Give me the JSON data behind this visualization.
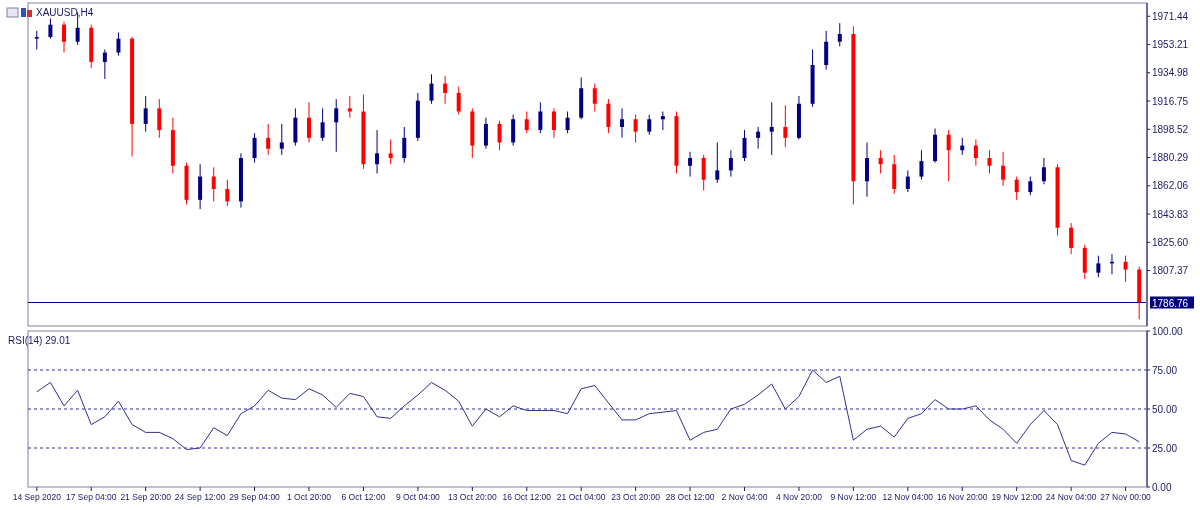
{
  "chart_data": [
    {
      "type": "candlestick",
      "title": "XAUUSD,H4",
      "tick_labels": "y",
      "ohlc": [
        [
          1957,
          1962,
          1950,
          1958
        ],
        [
          1958,
          1970,
          1957,
          1966
        ],
        [
          1966,
          1968,
          1948,
          1955
        ],
        [
          1955,
          1974,
          1953,
          1964
        ],
        [
          1964,
          1966,
          1938,
          1942
        ],
        [
          1942,
          1950,
          1931,
          1948
        ],
        [
          1948,
          1961,
          1946,
          1957
        ],
        [
          1957,
          1958,
          1881,
          1902
        ],
        [
          1902,
          1920,
          1897,
          1912
        ],
        [
          1912,
          1918,
          1893,
          1898
        ],
        [
          1898,
          1906,
          1870,
          1875
        ],
        [
          1875,
          1877,
          1850,
          1853
        ],
        [
          1853,
          1876,
          1847,
          1868
        ],
        [
          1868,
          1874,
          1852,
          1860
        ],
        [
          1860,
          1866,
          1849,
          1852
        ],
        [
          1852,
          1883,
          1848,
          1880
        ],
        [
          1880,
          1896,
          1877,
          1893
        ],
        [
          1893,
          1902,
          1882,
          1886
        ],
        [
          1886,
          1902,
          1882,
          1890
        ],
        [
          1890,
          1912,
          1888,
          1906
        ],
        [
          1906,
          1916,
          1890,
          1893
        ],
        [
          1893,
          1912,
          1891,
          1903
        ],
        [
          1903,
          1918,
          1884,
          1912
        ],
        [
          1912,
          1920,
          1906,
          1910
        ],
        [
          1910,
          1921,
          1873,
          1876
        ],
        [
          1876,
          1898,
          1870,
          1883
        ],
        [
          1883,
          1892,
          1876,
          1880
        ],
        [
          1880,
          1900,
          1877,
          1893
        ],
        [
          1893,
          1922,
          1891,
          1917
        ],
        [
          1917,
          1934,
          1915,
          1928
        ],
        [
          1928,
          1933,
          1915,
          1922
        ],
        [
          1922,
          1926,
          1908,
          1910
        ],
        [
          1910,
          1912,
          1880,
          1888
        ],
        [
          1888,
          1906,
          1886,
          1902
        ],
        [
          1902,
          1904,
          1885,
          1890
        ],
        [
          1890,
          1908,
          1888,
          1905
        ],
        [
          1905,
          1910,
          1896,
          1898
        ],
        [
          1898,
          1916,
          1896,
          1910
        ],
        [
          1910,
          1912,
          1893,
          1898
        ],
        [
          1898,
          1910,
          1896,
          1906
        ],
        [
          1906,
          1932,
          1905,
          1925
        ],
        [
          1925,
          1928,
          1910,
          1915
        ],
        [
          1915,
          1918,
          1896,
          1900
        ],
        [
          1900,
          1912,
          1893,
          1905
        ],
        [
          1905,
          1908,
          1890,
          1897
        ],
        [
          1897,
          1908,
          1895,
          1905
        ],
        [
          1905,
          1910,
          1898,
          1907
        ],
        [
          1907,
          1910,
          1870,
          1875
        ],
        [
          1875,
          1884,
          1868,
          1880
        ],
        [
          1880,
          1882,
          1859,
          1866
        ],
        [
          1866,
          1890,
          1864,
          1872
        ],
        [
          1872,
          1885,
          1868,
          1880
        ],
        [
          1880,
          1898,
          1878,
          1893
        ],
        [
          1893,
          1900,
          1886,
          1897
        ],
        [
          1897,
          1916,
          1882,
          1900
        ],
        [
          1900,
          1914,
          1887,
          1893
        ],
        [
          1893,
          1920,
          1892,
          1915
        ],
        [
          1915,
          1950,
          1913,
          1940
        ],
        [
          1940,
          1962,
          1937,
          1955
        ],
        [
          1955,
          1967,
          1952,
          1960
        ],
        [
          1960,
          1965,
          1850,
          1865
        ],
        [
          1865,
          1890,
          1855,
          1880
        ],
        [
          1880,
          1885,
          1870,
          1876
        ],
        [
          1876,
          1882,
          1857,
          1860
        ],
        [
          1860,
          1872,
          1858,
          1868
        ],
        [
          1868,
          1885,
          1866,
          1878
        ],
        [
          1878,
          1899,
          1877,
          1895
        ],
        [
          1895,
          1898,
          1865,
          1885
        ],
        [
          1885,
          1893,
          1882,
          1888
        ],
        [
          1888,
          1892,
          1875,
          1880
        ],
        [
          1880,
          1885,
          1870,
          1875
        ],
        [
          1875,
          1884,
          1862,
          1866
        ],
        [
          1866,
          1868,
          1853,
          1858
        ],
        [
          1858,
          1868,
          1856,
          1865
        ],
        [
          1865,
          1880,
          1863,
          1874
        ],
        [
          1874,
          1876,
          1830,
          1835
        ],
        [
          1835,
          1838,
          1818,
          1822
        ],
        [
          1822,
          1824,
          1802,
          1806
        ],
        [
          1806,
          1817,
          1803,
          1812
        ],
        [
          1812,
          1818,
          1805,
          1813
        ],
        [
          1813,
          1817,
          1800,
          1808
        ],
        [
          1808,
          1810,
          1776,
          1787
        ]
      ],
      "colors": [
        "#000080",
        "#000080",
        "#ff0000",
        "#000080",
        "#ff0000",
        "#000080",
        "#000080",
        "#ff0000",
        "#000080",
        "#ff0000",
        "#ff0000",
        "#ff0000",
        "#000080",
        "#ff0000",
        "#ff0000",
        "#000080",
        "#000080",
        "#ff0000",
        "#000080",
        "#000080",
        "#ff0000",
        "#000080",
        "#000080",
        "#ff0000",
        "#ff0000",
        "#000080",
        "#ff0000",
        "#000080",
        "#000080",
        "#000080",
        "#ff0000",
        "#ff0000",
        "#ff0000",
        "#000080",
        "#ff0000",
        "#000080",
        "#ff0000",
        "#000080",
        "#ff0000",
        "#000080",
        "#000080",
        "#ff0000",
        "#ff0000",
        "#000080",
        "#ff0000",
        "#000080",
        "#000080",
        "#ff0000",
        "#000080",
        "#ff0000",
        "#000080",
        "#000080",
        "#000080",
        "#000080",
        "#000080",
        "#ff0000",
        "#000080",
        "#000080",
        "#000080",
        "#000080",
        "#ff0000",
        "#000080",
        "#ff0000",
        "#ff0000",
        "#000080",
        "#000080",
        "#000080",
        "#ff0000",
        "#000080",
        "#ff0000",
        "#ff0000",
        "#ff0000",
        "#ff0000",
        "#000080",
        "#000080",
        "#ff0000",
        "#ff0000",
        "#ff0000",
        "#000080",
        "#000080",
        "#ff0000",
        "#ff0000"
      ],
      "ylim": [
        1771.6,
        1980
      ],
      "yticks": [
        {
          "value": 1807.37,
          "label": "1807.37"
        },
        {
          "value": 1825.6,
          "label": "1825.60"
        },
        {
          "value": 1843.83,
          "label": "1843.83"
        },
        {
          "value": 1862.06,
          "label": "1862.06"
        },
        {
          "value": 1880.29,
          "label": "1880.29"
        },
        {
          "value": 1898.52,
          "label": "1898.52"
        },
        {
          "value": 1916.75,
          "label": "1916.75"
        },
        {
          "value": 1934.98,
          "label": "1934.98"
        },
        {
          "value": 1953.21,
          "label": "1953.21"
        },
        {
          "value": 1971.44,
          "label": "1971.44"
        }
      ],
      "ref_lines": [
        {
          "axis": "y",
          "value": 1786.76,
          "label": "1786.76",
          "color": "#000080",
          "line_style": "solid"
        }
      ]
    },
    {
      "type": "line",
      "title": "RSI(14) 29.01",
      "categories": [
        "14 Sep 2020",
        null,
        null,
        null,
        "17 Sep 04:00",
        null,
        null,
        null,
        "21 Sep 20:00",
        null,
        null,
        null,
        "24 Sep 12:00",
        null,
        null,
        null,
        "29 Sep 04:00",
        null,
        null,
        null,
        "1 Oct 20:00",
        null,
        null,
        null,
        "6 Oct 12:00",
        null,
        null,
        null,
        "9 Oct 04:00",
        null,
        null,
        null,
        "13 Oct 20:00",
        null,
        null,
        null,
        "16 Oct 12:00",
        null,
        null,
        null,
        "21 Oct 04:00",
        null,
        null,
        null,
        "23 Oct 20:00",
        null,
        null,
        null,
        "28 Oct 12:00",
        null,
        null,
        null,
        "2 Nov 04:00",
        null,
        null,
        null,
        "4 Nov 20:00",
        null,
        null,
        null,
        "9 Nov 12:00",
        null,
        null,
        null,
        "12 Nov 04:00",
        null,
        null,
        null,
        "16 Nov 20:00",
        null,
        null,
        null,
        "19 Nov 12:00",
        null,
        null,
        null,
        "24 Nov 04:00",
        null,
        null,
        null,
        "27 Nov 00:00",
        null
      ],
      "series": [
        {
          "color": "#303090",
          "values": [
            61,
            67,
            52,
            62,
            40,
            45,
            55,
            40,
            35,
            35,
            31,
            24,
            25,
            38,
            33,
            47,
            52,
            62,
            57,
            56,
            63,
            59,
            51,
            60,
            58,
            45,
            44,
            52,
            59,
            67,
            62,
            55,
            39,
            50,
            45,
            52,
            49,
            49,
            49,
            47,
            63,
            65,
            54,
            43,
            43,
            47,
            48,
            49,
            30,
            35,
            37,
            50,
            53,
            59,
            66,
            50,
            58,
            75,
            67,
            71,
            30,
            37,
            39,
            32,
            44,
            47,
            56,
            50,
            50,
            52,
            43,
            37,
            28,
            40,
            49,
            40,
            17,
            14,
            28,
            35,
            34,
            29
          ]
        }
      ],
      "ylim": [
        0,
        100
      ],
      "yticks": [
        {
          "value": 0,
          "label": "0.00"
        },
        {
          "value": 25,
          "label": "25.00"
        },
        {
          "value": 50,
          "label": "50.00"
        },
        {
          "value": 75,
          "label": "75.00"
        },
        {
          "value": 100,
          "label": "100.00"
        }
      ],
      "ref_lines": [
        {
          "axis": "y",
          "value": 25,
          "color": "#303090",
          "line_style": "dashed"
        },
        {
          "axis": "y",
          "value": 50,
          "color": "#303090",
          "line_style": "dashed"
        },
        {
          "axis": "y",
          "value": 75,
          "color": "#303090",
          "line_style": "dashed"
        }
      ]
    }
  ]
}
